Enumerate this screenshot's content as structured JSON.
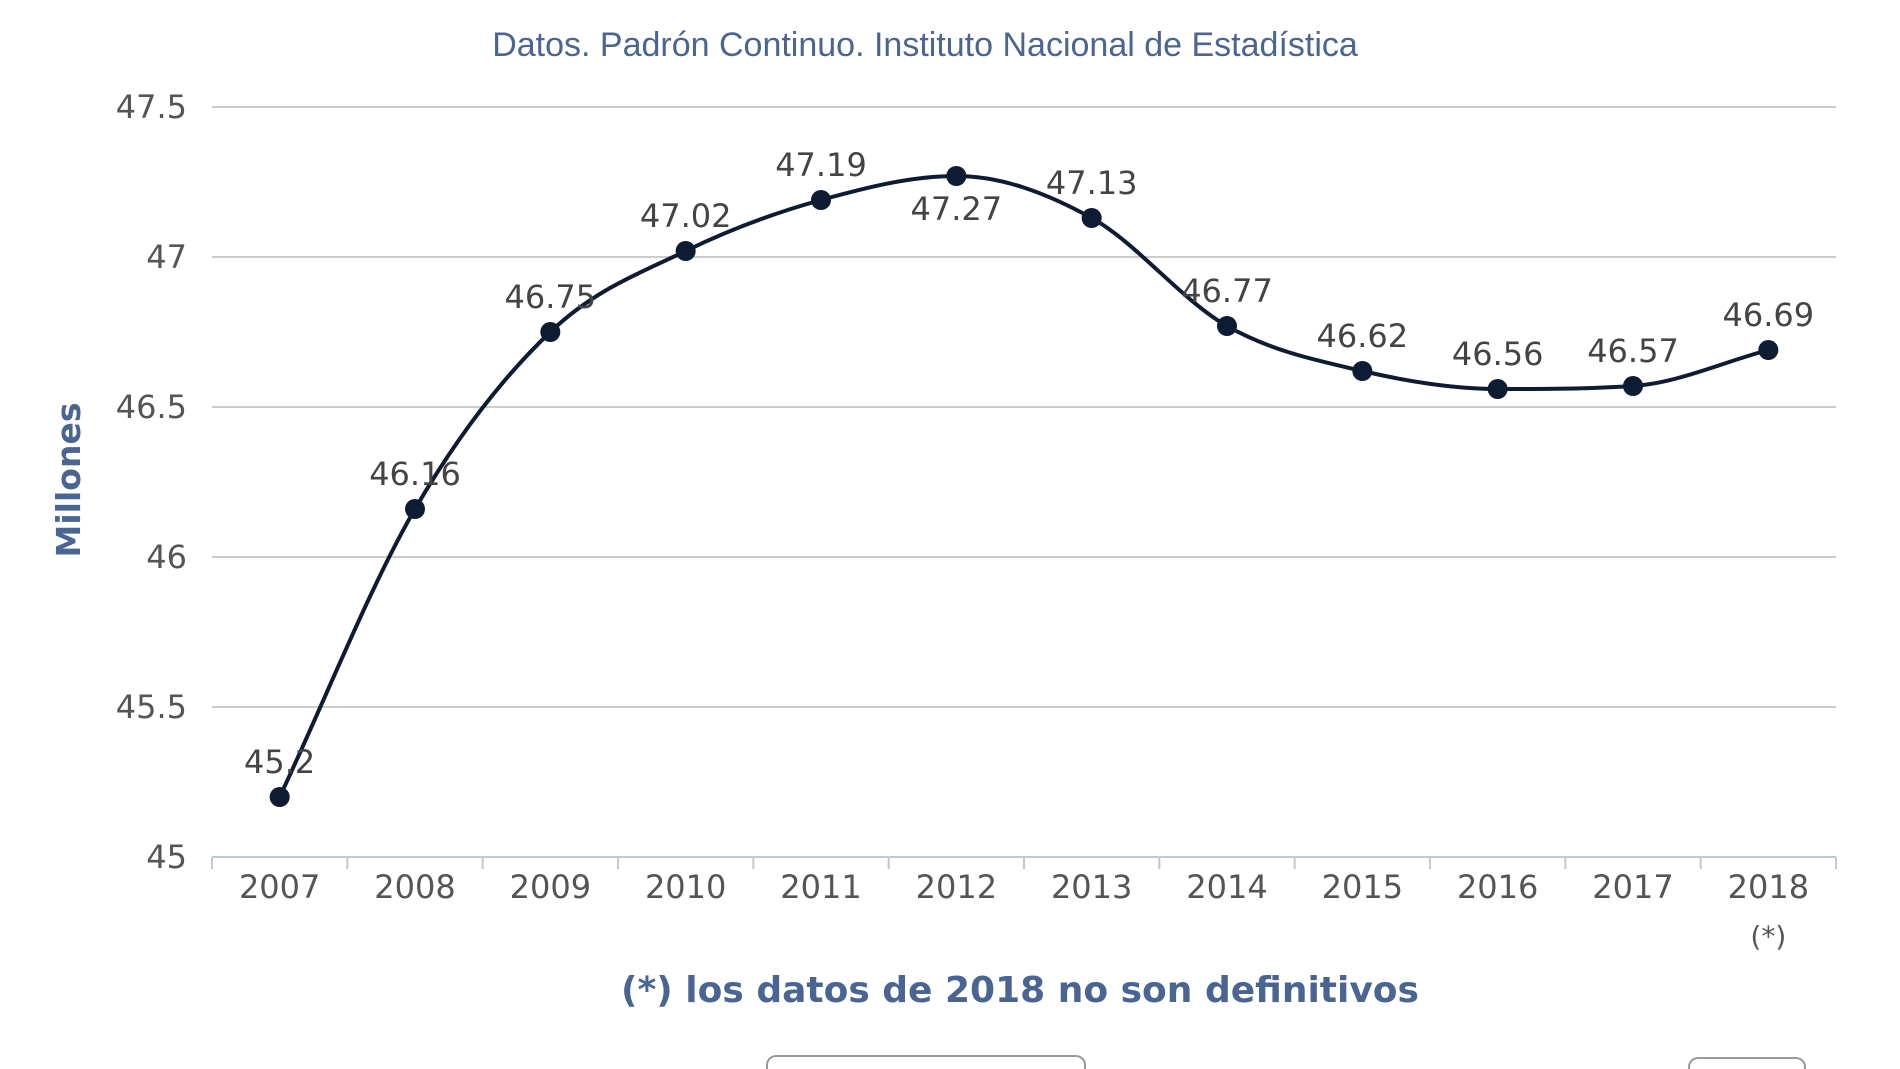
{
  "chart_data": {
    "type": "line",
    "subtitle": "Datos. Padrón Continuo. Instituto Nacional de Estadística",
    "ylabel": "Millones",
    "xlabel": "",
    "categories": [
      "2007",
      "2008",
      "2009",
      "2010",
      "2011",
      "2012",
      "2013",
      "2014",
      "2015",
      "2016",
      "2017",
      "2018"
    ],
    "category_notes": [
      "",
      "",
      "",
      "",
      "",
      "",
      "",
      "",
      "",
      "",
      "",
      "(*)"
    ],
    "series": [
      {
        "values": [
          45.2,
          46.16,
          46.75,
          47.02,
          47.19,
          47.27,
          47.13,
          46.77,
          46.62,
          46.56,
          46.57,
          46.69
        ],
        "data_labels": [
          "45.2",
          "46.16",
          "46.75",
          "47.02",
          "47.19",
          "47.27",
          "47.13",
          "46.77",
          "46.62",
          "46.56",
          "46.57",
          "46.69"
        ]
      }
    ],
    "ylim": [
      45,
      47.5
    ],
    "yticks": [
      45,
      45.5,
      46,
      46.5,
      47,
      47.5
    ],
    "ytick_labels": [
      "45",
      "45.5",
      "46",
      "46.5",
      "47",
      "47.5"
    ],
    "grid": true,
    "line_style": "smooth",
    "line_color": "#0d1b33",
    "footnote": "(*) los datos de 2018 no son definitivos",
    "colors": {
      "line": "#0d1b33",
      "grid": "#cccccc",
      "axis_text": "#555555",
      "accent_text": "#4a6591"
    }
  }
}
